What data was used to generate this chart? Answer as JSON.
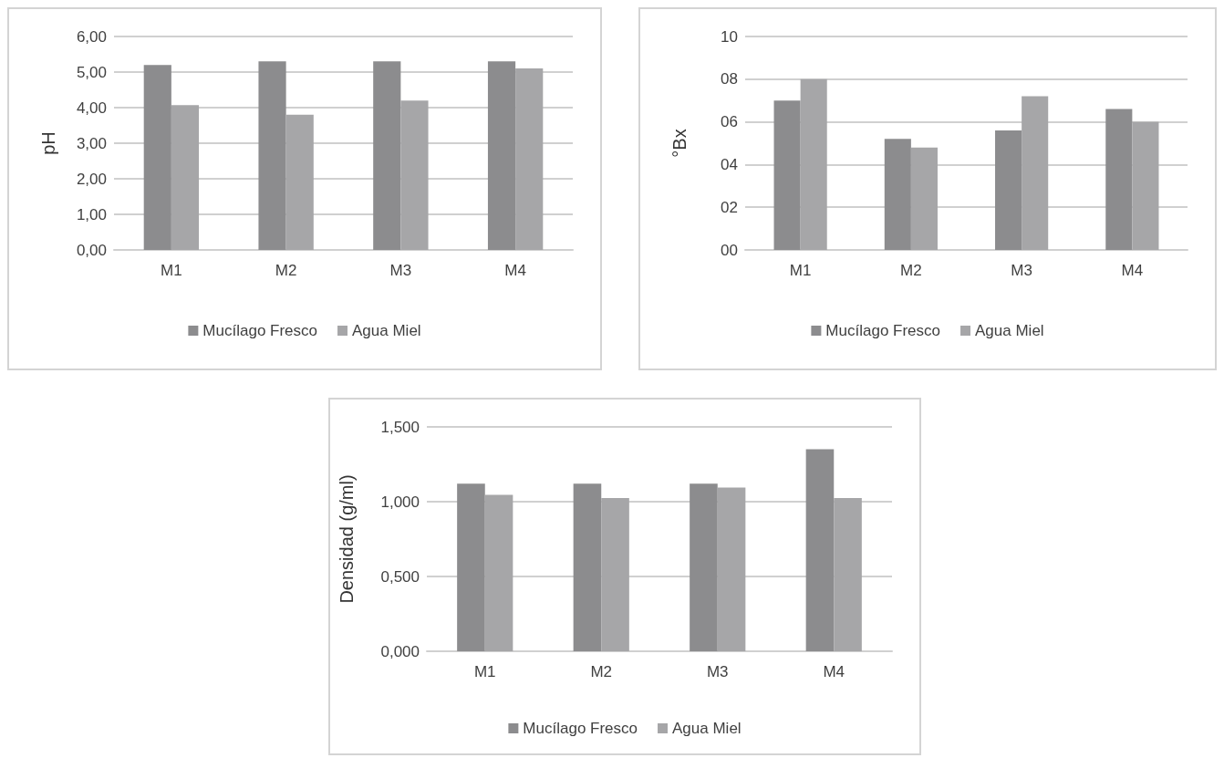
{
  "chart_data": [
    {
      "type": "bar",
      "ylabel": "pH",
      "categories": [
        "M1",
        "M2",
        "M3",
        "M4"
      ],
      "series": [
        {
          "name": "Mucílago Fresco",
          "color": "#8c8c8e",
          "values": [
            5.2,
            5.3,
            5.3,
            5.3
          ]
        },
        {
          "name": "Agua Miel",
          "color": "#a6a6a8",
          "values": [
            4.07,
            3.8,
            4.2,
            5.1
          ]
        }
      ],
      "ylim": [
        0,
        6
      ],
      "yticks": [
        {
          "value": 0,
          "label": "0,00"
        },
        {
          "value": 1,
          "label": "1,00"
        },
        {
          "value": 2,
          "label": "2,00"
        },
        {
          "value": 3,
          "label": "3,00"
        },
        {
          "value": 4,
          "label": "4,00"
        },
        {
          "value": 5,
          "label": "5,00"
        },
        {
          "value": 6,
          "label": "6,00"
        }
      ],
      "grid": "y",
      "legend": "bottom"
    },
    {
      "type": "bar",
      "ylabel": "°Bx",
      "categories": [
        "M1",
        "M2",
        "M3",
        "M4"
      ],
      "series": [
        {
          "name": "Mucílago Fresco",
          "color": "#8c8c8e",
          "values": [
            7.0,
            5.2,
            5.6,
            6.6
          ]
        },
        {
          "name": "Agua Miel",
          "color": "#a6a6a8",
          "values": [
            8.0,
            4.8,
            7.2,
            6.0
          ]
        }
      ],
      "ylim": [
        0,
        10
      ],
      "yticks": [
        {
          "value": 0,
          "label": "00"
        },
        {
          "value": 2,
          "label": "02"
        },
        {
          "value": 4,
          "label": "04"
        },
        {
          "value": 6,
          "label": "06"
        },
        {
          "value": 8,
          "label": "08"
        },
        10
      ],
      "grid": "y",
      "legend": "bottom"
    },
    {
      "type": "bar",
      "ylabel": "Densidad (g/ml)",
      "categories": [
        "M1",
        "M2",
        "M3",
        "M4"
      ],
      "series": [
        {
          "name": "Mucílago Fresco",
          "color": "#8c8c8e",
          "values": [
            1.12,
            1.12,
            1.12,
            1.35
          ]
        },
        {
          "name": "Agua Miel",
          "color": "#a6a6a8",
          "values": [
            1.045,
            1.025,
            1.095,
            1.025
          ]
        }
      ],
      "ylim": [
        0,
        1.5
      ],
      "yticks": [
        {
          "value": 0,
          "label": "0,000"
        },
        {
          "value": 0.5,
          "label": "0,500"
        },
        {
          "value": 1,
          "label": "1,000"
        },
        {
          "value": 1.5,
          "label": "1,500"
        }
      ],
      "grid": "y",
      "legend": "bottom"
    }
  ]
}
